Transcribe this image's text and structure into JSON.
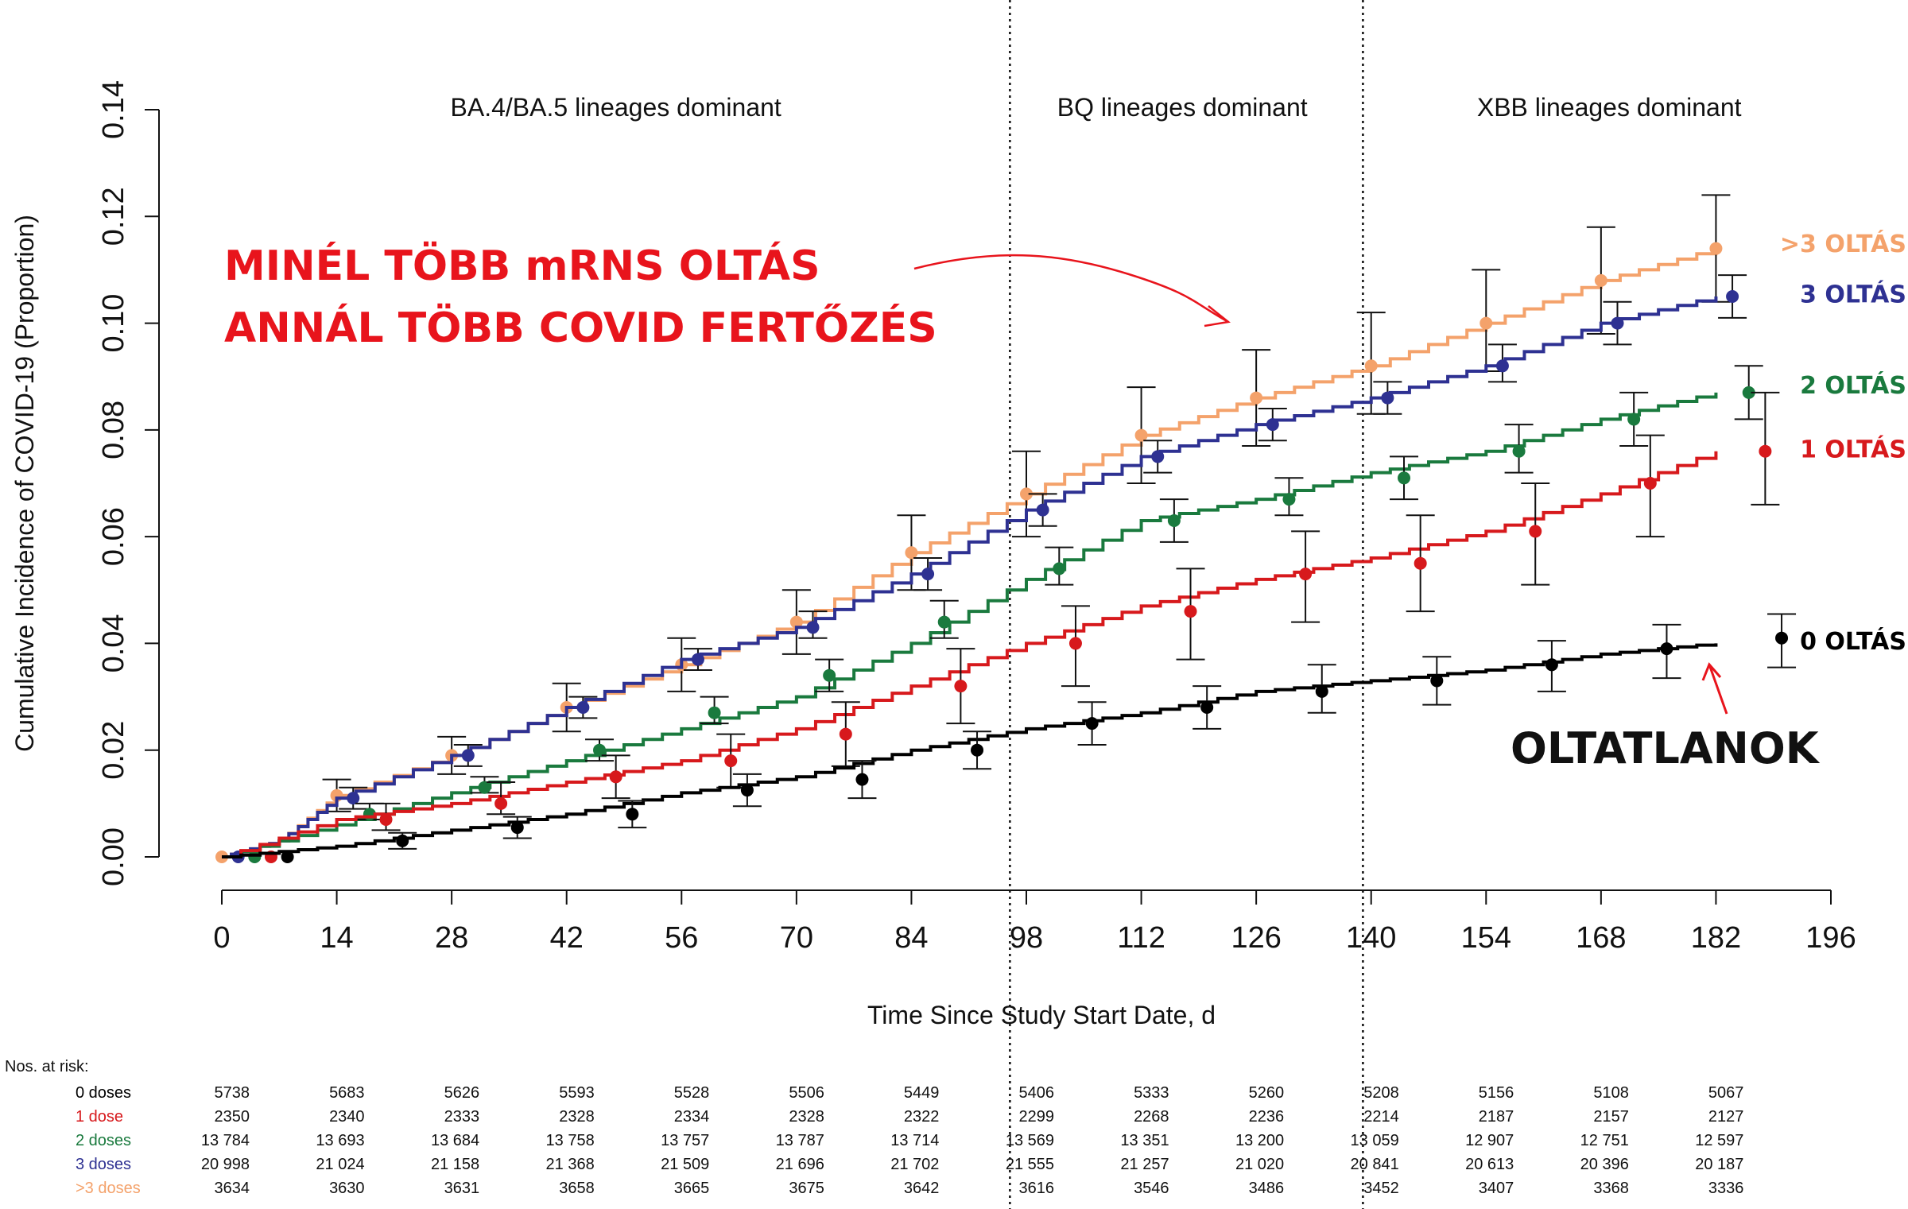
{
  "chart_data": {
    "type": "line",
    "ylabel": "Cumulative Incidence of COVID-19 (Proportion)",
    "xlabel": "Time Since Study Start Date, d",
    "xlim": [
      0,
      196
    ],
    "ylim": [
      0,
      0.14
    ],
    "xticks": [
      "0",
      "14",
      "28",
      "42",
      "56",
      "70",
      "84",
      "98",
      "112",
      "126",
      "140",
      "154",
      "168",
      "182",
      "196"
    ],
    "yticks": [
      "0.00",
      "0.02",
      "0.04",
      "0.06",
      "0.08",
      "0.10",
      "0.12",
      "0.14"
    ],
    "grid": false,
    "period_boundaries": [
      96,
      139
    ],
    "periods": [
      {
        "label": "BA.4/BA.5 lineages dominant",
        "center": 48
      },
      {
        "label": "BQ lineages dominant",
        "center": 117
      },
      {
        "label": "XBB lineages dominant",
        "center": 169
      }
    ],
    "series": [
      {
        "name": ">3 doses",
        "color": "#f4a26b",
        "curve": [
          [
            0,
            0
          ],
          [
            7,
            0.003
          ],
          [
            14,
            0.0115
          ],
          [
            28,
            0.019
          ],
          [
            42,
            0.028
          ],
          [
            56,
            0.036
          ],
          [
            70,
            0.044
          ],
          [
            84,
            0.057
          ],
          [
            98,
            0.068
          ],
          [
            112,
            0.079
          ],
          [
            126,
            0.086
          ],
          [
            140,
            0.092
          ],
          [
            154,
            0.1
          ],
          [
            168,
            0.108
          ],
          [
            182,
            0.114
          ]
        ],
        "points": [
          [
            0,
            0,
            0,
            0
          ],
          [
            14,
            0.0115,
            0.0085,
            0.0145
          ],
          [
            28,
            0.019,
            0.0155,
            0.0225
          ],
          [
            42,
            0.028,
            0.0235,
            0.0325
          ],
          [
            56,
            0.036,
            0.031,
            0.041
          ],
          [
            70,
            0.044,
            0.038,
            0.05
          ],
          [
            84,
            0.057,
            0.05,
            0.064
          ],
          [
            98,
            0.068,
            0.06,
            0.076
          ],
          [
            112,
            0.079,
            0.07,
            0.088
          ],
          [
            126,
            0.086,
            0.077,
            0.095
          ],
          [
            140,
            0.092,
            0.083,
            0.102
          ],
          [
            154,
            0.1,
            0.091,
            0.11
          ],
          [
            168,
            0.108,
            0.098,
            0.118
          ],
          [
            182,
            0.114,
            0.104,
            0.124
          ]
        ]
      },
      {
        "name": "3 doses",
        "color": "#2e3192",
        "curve": [
          [
            0,
            0
          ],
          [
            7,
            0.003
          ],
          [
            14,
            0.011
          ],
          [
            28,
            0.019
          ],
          [
            42,
            0.028
          ],
          [
            56,
            0.037
          ],
          [
            70,
            0.043
          ],
          [
            84,
            0.053
          ],
          [
            98,
            0.065
          ],
          [
            112,
            0.075
          ],
          [
            126,
            0.081
          ],
          [
            140,
            0.086
          ],
          [
            154,
            0.092
          ],
          [
            168,
            0.1
          ],
          [
            182,
            0.105
          ]
        ],
        "points": [
          [
            2,
            0,
            0,
            0
          ],
          [
            16,
            0.011,
            0.009,
            0.013
          ],
          [
            30,
            0.019,
            0.017,
            0.021
          ],
          [
            44,
            0.028,
            0.026,
            0.03
          ],
          [
            58,
            0.037,
            0.035,
            0.039
          ],
          [
            72,
            0.043,
            0.041,
            0.046
          ],
          [
            86,
            0.053,
            0.05,
            0.056
          ],
          [
            100,
            0.065,
            0.062,
            0.068
          ],
          [
            114,
            0.075,
            0.072,
            0.078
          ],
          [
            128,
            0.081,
            0.078,
            0.084
          ],
          [
            142,
            0.086,
            0.083,
            0.089
          ],
          [
            156,
            0.092,
            0.089,
            0.096
          ],
          [
            170,
            0.1,
            0.096,
            0.104
          ],
          [
            184,
            0.105,
            0.101,
            0.109
          ]
        ]
      },
      {
        "name": "2 doses",
        "color": "#1a7a3e",
        "curve": [
          [
            0,
            0
          ],
          [
            14,
            0.006
          ],
          [
            28,
            0.012
          ],
          [
            42,
            0.018
          ],
          [
            56,
            0.024
          ],
          [
            70,
            0.03
          ],
          [
            84,
            0.04
          ],
          [
            98,
            0.052
          ],
          [
            112,
            0.063
          ],
          [
            126,
            0.067
          ],
          [
            140,
            0.072
          ],
          [
            154,
            0.076
          ],
          [
            168,
            0.082
          ],
          [
            182,
            0.087
          ]
        ],
        "points": [
          [
            4,
            0,
            0,
            0
          ],
          [
            18,
            0.008,
            0.007,
            0.01
          ],
          [
            32,
            0.013,
            0.012,
            0.015
          ],
          [
            46,
            0.02,
            0.018,
            0.022
          ],
          [
            60,
            0.027,
            0.025,
            0.03
          ],
          [
            74,
            0.034,
            0.031,
            0.037
          ],
          [
            88,
            0.044,
            0.041,
            0.048
          ],
          [
            102,
            0.054,
            0.051,
            0.058
          ],
          [
            116,
            0.063,
            0.059,
            0.067
          ],
          [
            130,
            0.067,
            0.064,
            0.071
          ],
          [
            144,
            0.071,
            0.067,
            0.075
          ],
          [
            158,
            0.076,
            0.072,
            0.081
          ],
          [
            172,
            0.082,
            0.077,
            0.087
          ],
          [
            186,
            0.087,
            0.082,
            0.092
          ]
        ]
      },
      {
        "name": "1 dose",
        "color": "#d7191c",
        "curve": [
          [
            0,
            0
          ],
          [
            14,
            0.007
          ],
          [
            28,
            0.01
          ],
          [
            42,
            0.014
          ],
          [
            56,
            0.018
          ],
          [
            70,
            0.024
          ],
          [
            84,
            0.032
          ],
          [
            98,
            0.04
          ],
          [
            112,
            0.047
          ],
          [
            126,
            0.052
          ],
          [
            140,
            0.056
          ],
          [
            154,
            0.061
          ],
          [
            168,
            0.068
          ],
          [
            182,
            0.076
          ]
        ],
        "points": [
          [
            6,
            0,
            0,
            0
          ],
          [
            20,
            0.007,
            0.005,
            0.01
          ],
          [
            34,
            0.01,
            0.008,
            0.014
          ],
          [
            48,
            0.015,
            0.011,
            0.019
          ],
          [
            62,
            0.018,
            0.013,
            0.023
          ],
          [
            76,
            0.023,
            0.017,
            0.029
          ],
          [
            90,
            0.032,
            0.025,
            0.039
          ],
          [
            104,
            0.04,
            0.032,
            0.047
          ],
          [
            118,
            0.046,
            0.037,
            0.054
          ],
          [
            132,
            0.053,
            0.044,
            0.061
          ],
          [
            146,
            0.055,
            0.046,
            0.064
          ],
          [
            160,
            0.061,
            0.051,
            0.07
          ],
          [
            174,
            0.07,
            0.06,
            0.079
          ],
          [
            188,
            0.076,
            0.066,
            0.087
          ]
        ]
      },
      {
        "name": "0 doses",
        "color": "#000000",
        "curve": [
          [
            0,
            0
          ],
          [
            14,
            0.002
          ],
          [
            28,
            0.005
          ],
          [
            42,
            0.008
          ],
          [
            56,
            0.012
          ],
          [
            70,
            0.015
          ],
          [
            84,
            0.02
          ],
          [
            98,
            0.024
          ],
          [
            112,
            0.027
          ],
          [
            126,
            0.031
          ],
          [
            140,
            0.033
          ],
          [
            154,
            0.035
          ],
          [
            168,
            0.038
          ],
          [
            182,
            0.04
          ]
        ],
        "points": [
          [
            8,
            0,
            0,
            0
          ],
          [
            22,
            0.003,
            0.0015,
            0.0045
          ],
          [
            36,
            0.0055,
            0.0035,
            0.0075
          ],
          [
            50,
            0.008,
            0.0055,
            0.0105
          ],
          [
            64,
            0.0125,
            0.0095,
            0.0155
          ],
          [
            78,
            0.0145,
            0.011,
            0.018
          ],
          [
            92,
            0.02,
            0.0165,
            0.0235
          ],
          [
            106,
            0.025,
            0.021,
            0.029
          ],
          [
            120,
            0.028,
            0.024,
            0.032
          ],
          [
            134,
            0.031,
            0.027,
            0.036
          ],
          [
            148,
            0.033,
            0.0285,
            0.0375
          ],
          [
            162,
            0.036,
            0.031,
            0.0405
          ],
          [
            176,
            0.039,
            0.0335,
            0.0435
          ],
          [
            190,
            0.041,
            0.0355,
            0.0455
          ]
        ]
      }
    ],
    "risk_table": {
      "title": "Nos. at risk:",
      "columns": [
        0,
        14,
        28,
        42,
        56,
        70,
        84,
        98,
        112,
        126,
        140,
        154,
        168,
        182
      ],
      "rows": [
        {
          "label": "0 doses",
          "color": "#000000",
          "values": [
            "5738",
            "5683",
            "5626",
            "5593",
            "5528",
            "5506",
            "5449",
            "5406",
            "5333",
            "5260",
            "5208",
            "5156",
            "5108",
            "5067"
          ]
        },
        {
          "label": "1 dose",
          "color": "#d7191c",
          "values": [
            "2350",
            "2340",
            "2333",
            "2328",
            "2334",
            "2328",
            "2322",
            "2299",
            "2268",
            "2236",
            "2214",
            "2187",
            "2157",
            "2127"
          ]
        },
        {
          "label": "2 doses",
          "color": "#1a7a3e",
          "values": [
            "13 784",
            "13 693",
            "13 684",
            "13 758",
            "13 757",
            "13 787",
            "13 714",
            "13 569",
            "13 351",
            "13 200",
            "13 059",
            "12 907",
            "12 751",
            "12 597"
          ]
        },
        {
          "label": "3 doses",
          "color": "#2e3192",
          "values": [
            "20 998",
            "21 024",
            "21 158",
            "21 368",
            "21 509",
            "21 696",
            "21 702",
            "21 555",
            "21 257",
            "21 020",
            "20 841",
            "20 613",
            "20 396",
            "20 187"
          ]
        },
        {
          "label": ">3 doses",
          "color": "#f4a26b",
          "values": [
            "3634",
            "3630",
            "3631",
            "3658",
            "3665",
            "3675",
            "3642",
            "3616",
            "3546",
            "3486",
            "3452",
            "3407",
            "3368",
            "3336"
          ]
        }
      ]
    }
  },
  "annotations": {
    "headline_line1": "MINÉL TÖBB mRNS OLTÁS",
    "headline_line2": "ANNÁL TÖBB COVID FERTŐZÉS",
    "unvaccinated": "OLTATLANOK",
    "end_labels": [
      {
        "text": ">3 OLTÁS",
        "color": "#f4a26b",
        "y": 0.115
      },
      {
        "text": "3 OLTÁS",
        "color": "#2e3192",
        "y": 0.1055
      },
      {
        "text": "2 OLTÁS",
        "color": "#1a7a3e",
        "y": 0.0885
      },
      {
        "text": "1 OLTÁS",
        "color": "#d7191c",
        "y": 0.0765
      },
      {
        "text": "0 OLTÁS",
        "color": "#000000",
        "y": 0.0405
      }
    ]
  }
}
